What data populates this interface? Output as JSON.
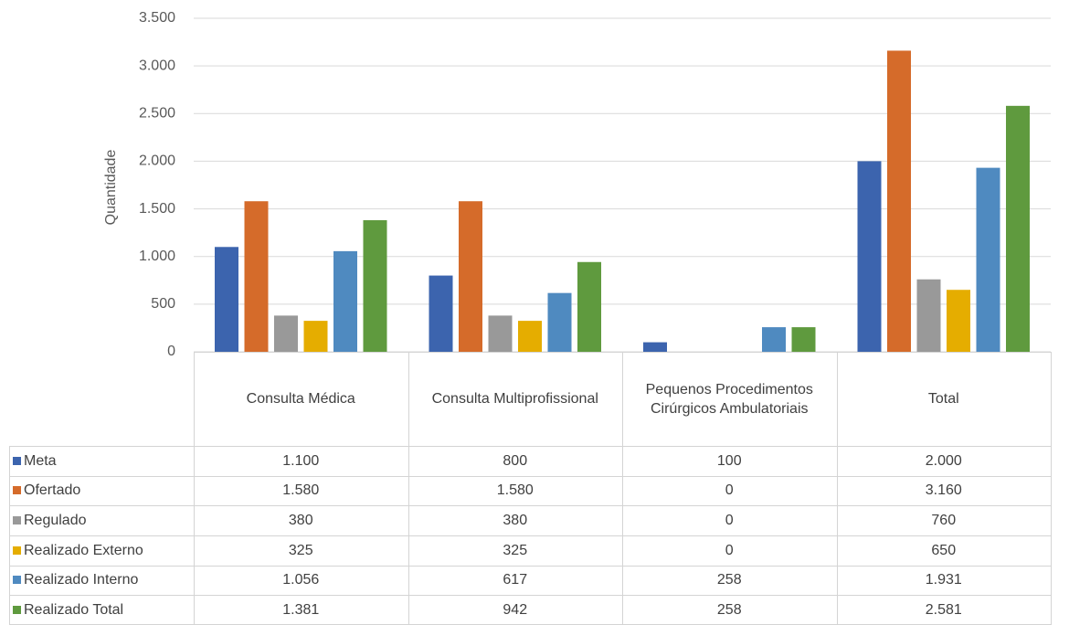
{
  "chart_data": {
    "type": "bar",
    "y_axis_label": "Quantidade",
    "categories": [
      "Consulta Médica",
      "Consulta Multiprofissional",
      "Pequenos Procedimentos Cirúrgicos Ambulatoriais",
      "Total"
    ],
    "series": [
      {
        "name": "Meta",
        "color": "#3c64ae",
        "values": [
          1100,
          800,
          100,
          2000
        ],
        "value_labels": [
          "1.100",
          "800",
          "100",
          "2.000"
        ]
      },
      {
        "name": "Ofertado",
        "color": "#d56b2a",
        "values": [
          1580,
          1580,
          0,
          3160
        ],
        "value_labels": [
          "1.580",
          "1.580",
          "0",
          "3.160"
        ]
      },
      {
        "name": "Regulado",
        "color": "#999999",
        "values": [
          380,
          380,
          0,
          760
        ],
        "value_labels": [
          "380",
          "380",
          "0",
          "760"
        ]
      },
      {
        "name": "Realizado Externo",
        "color": "#e5ad00",
        "values": [
          325,
          325,
          0,
          650
        ],
        "value_labels": [
          "325",
          "325",
          "0",
          "650"
        ]
      },
      {
        "name": "Realizado Interno",
        "color": "#4f8ac0",
        "values": [
          1056,
          617,
          258,
          1931
        ],
        "value_labels": [
          "1.056",
          "617",
          "258",
          "1.931"
        ]
      },
      {
        "name": "Realizado Total",
        "color": "#5f9a3e",
        "values": [
          1381,
          942,
          258,
          2581
        ],
        "value_labels": [
          "1.381",
          "942",
          "258",
          "2.581"
        ]
      }
    ],
    "ylim": [
      0,
      3500
    ],
    "yticks": [
      0,
      500,
      {
        "value": 1000,
        "label": "1.000"
      },
      {
        "value": 1500,
        "label": "1.500"
      },
      {
        "value": 2000,
        "label": "2.000"
      },
      {
        "value": 2500,
        "label": "2.500"
      },
      {
        "value": 3000,
        "label": "3.000"
      },
      {
        "value": 3500,
        "label": "3.500"
      }
    ],
    "grid": true
  }
}
